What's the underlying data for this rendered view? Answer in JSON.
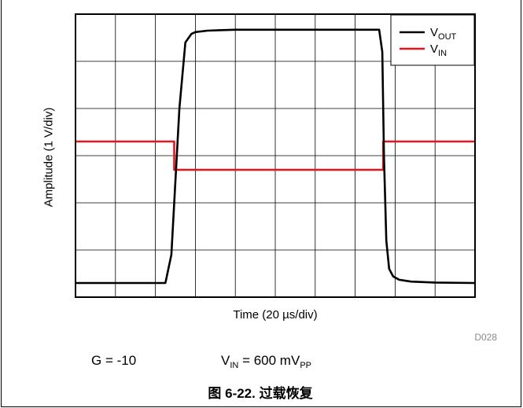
{
  "chart_data": {
    "type": "line",
    "title": "",
    "xlabel_pre": "Time (20 ",
    "xlabel_unit": "µs/div)",
    "ylabel": "Amplitude (1 V/div)",
    "x_divisions": 10,
    "y_divisions": 6,
    "grid": true,
    "legend_placement": "top-right",
    "series": [
      {
        "name_base": "V",
        "name_sub": "OUT",
        "color": "#000000",
        "x": [
          0,
          2.25,
          2.4,
          2.6,
          2.75,
          2.9,
          3.0,
          3.1,
          3.3,
          3.6,
          4.0,
          5.0,
          6.0,
          7.0,
          7.6,
          7.68,
          7.72,
          7.78,
          7.85,
          7.95,
          8.1,
          8.4,
          9.0,
          10.0
        ],
        "y": [
          0.3,
          0.3,
          0.9,
          4.0,
          5.4,
          5.58,
          5.62,
          5.63,
          5.65,
          5.66,
          5.67,
          5.67,
          5.67,
          5.67,
          5.67,
          5.2,
          3.0,
          1.2,
          0.6,
          0.44,
          0.37,
          0.33,
          0.31,
          0.3
        ]
      },
      {
        "name_base": "V",
        "name_sub": "IN",
        "color": "#e8141c",
        "x": [
          0,
          2.47,
          2.47,
          7.7,
          7.7,
          10.0
        ],
        "y": [
          3.3,
          3.3,
          2.7,
          2.7,
          3.3,
          3.3
        ]
      }
    ],
    "xlim": [
      0,
      10
    ],
    "ylim": [
      0,
      6
    ]
  },
  "doc_code": "D028",
  "conditions": {
    "gain": "G = -10",
    "vin_base": "V",
    "vin_sub": "IN",
    "vin_mid": " = 600 mV",
    "vin_unit_sub": "PP"
  },
  "caption": "图 6-22. 过载恢复"
}
